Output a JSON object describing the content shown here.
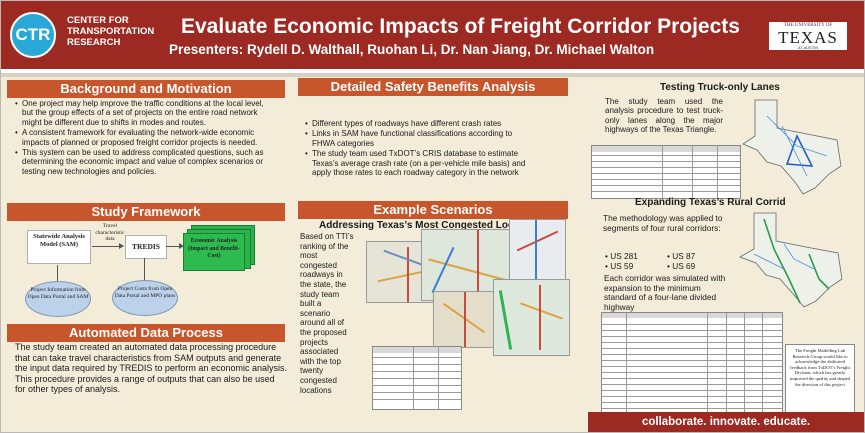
{
  "header": {
    "logo_mark": "CTR",
    "logo_lines": [
      "CENTER FOR",
      "TRANSPORTATION",
      "RESEARCH"
    ],
    "title": "Evaluate Economic Impacts of Freight Corridor Projects",
    "presenters": "Presenters: Rydell D. Walthall, Ruohan Li, Dr. Nan Jiang, Dr. Michael Walton",
    "seal_top": "THE UNIVERSITY OF",
    "seal_main": "TEXAS",
    "seal_bottom": "AT AUSTIN"
  },
  "sections": {
    "background": {
      "heading": "Background and Motivation",
      "bullets": [
        "One project may help improve the traffic conditions at the local level, but the group effects of a set of projects on the entire road network might be different due to shifts in modes and routes.",
        "A consistent framework for evaluating the network-wide economic impacts of planned or proposed freight corridor projects is needed.",
        "This system can be used to address complicated questions, such as determining the economic impact and value of complex scenarios or testing new technologies and policies."
      ]
    },
    "framework": {
      "heading": "Study Framework",
      "box_sam": "Statewide Analysis Model (SAM)",
      "arrow_label": "Travel characteristic data",
      "box_tredis": "TREDIS",
      "box_output": "Economic Analysis (Impact and Benefit-Cost)",
      "ellipse_left": "Project Information from Open Data Portal and SAM",
      "ellipse_right": "Project Costs from Open Data Portal and MPO plans"
    },
    "automated": {
      "heading": "Automated Data Process",
      "text": "The study team created an automated data processing procedure that can take travel characteristics from SAM outputs and generate the input data required by TREDIS to perform an economic analysis. This procedure provides a range of outputs that can also be used for other types of analysis."
    },
    "safety": {
      "heading": "Detailed Safety Benefits Analysis",
      "bullets": [
        "Different types of roadways have different crash rates",
        "Links in SAM have functional classifications according to FHWA categories",
        "The study team used TxDOT’s CRIS database to estimate Texas’s average crash rate (on a per-vehicle mile basis) and apply those rates to each roadway category in the network"
      ]
    },
    "scenarios": {
      "heading": "Example Scenarios",
      "subheading": "Addressing Texas’s Most Congested Locations",
      "text_lines": [
        "Based on TTI’s",
        "ranking of the",
        "most",
        "congested",
        "roadways in",
        "the state, the",
        "study team",
        "built a",
        "scenario",
        "around all of",
        "the proposed",
        "projects",
        "associated",
        "with the top",
        "twenty",
        "congested",
        "locations"
      ]
    },
    "truck": {
      "heading": "Testing Truck-only Lanes",
      "text": "The study team used the analysis procedure to test truck-only lanes along the major highways of the Texas Triangle."
    },
    "rural": {
      "heading": "Expanding Texas’s Rural Corrid",
      "text": "The methodology was applied to segments of four rural corridors:",
      "corridors": [
        "US 281",
        "US 87",
        "US 59",
        "US 69"
      ],
      "text2": "Each corridor was simulated with expansion to the minimum standard of a four-lane divided highway"
    },
    "acknowledgment": "The Freight Modelling Lab Research Group would like to acknowledge the dedicated feedback from TxDOT’s Freight Division, which has greatly improved the quality and shaped the direction of this project"
  },
  "footer": {
    "tagline": "collaborate. innovate. educate."
  },
  "colors": {
    "header_bg": "#9c2a22",
    "banner_bg": "#c8562c",
    "poster_bg": "#f3ecd9",
    "logo_blue": "#29a8d8",
    "output_green": "#29b34a"
  }
}
